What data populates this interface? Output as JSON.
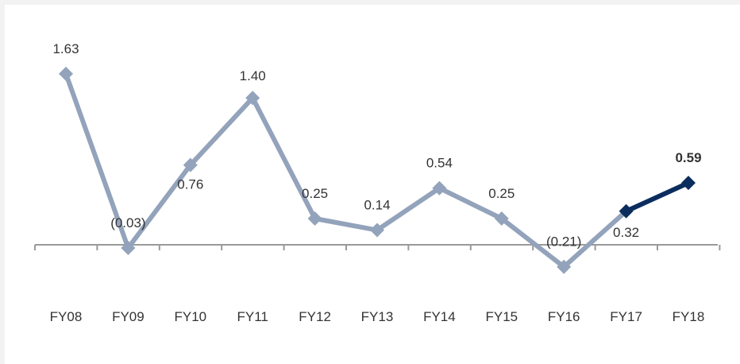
{
  "chart_data": {
    "type": "line",
    "categories": [
      "FY08",
      "FY09",
      "FY10",
      "FY11",
      "FY12",
      "FY13",
      "FY14",
      "FY15",
      "FY16",
      "FY17",
      "FY18"
    ],
    "values": [
      1.63,
      -0.03,
      0.76,
      1.4,
      0.25,
      0.14,
      0.54,
      0.25,
      -0.21,
      0.32,
      0.59
    ],
    "data_labels": [
      "1.63",
      "(0.03)",
      "0.76",
      "1.40",
      "0.25",
      "0.14",
      "0.54",
      "0.25",
      "(0.21)",
      "0.32",
      "0.59"
    ],
    "title": "",
    "xlabel": "",
    "ylabel": "",
    "grid": false,
    "legend": "none",
    "colors": {
      "main_series": "#93a3bb",
      "highlight_segment": "#0b2d5e",
      "axis": "#9a9a9a"
    }
  }
}
